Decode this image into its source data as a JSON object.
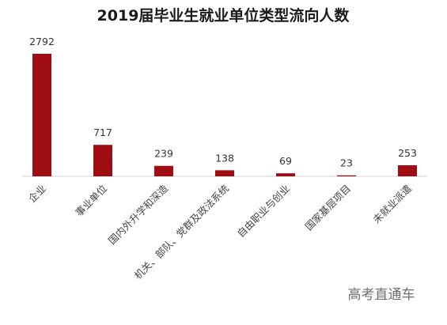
{
  "chart_data": {
    "type": "bar",
    "title": "2019届毕业生就业单位类型流向人数",
    "categories": [
      "企业",
      "事业单位",
      "国内外升学和深造",
      "机关、部队、党群及政法系统",
      "自由职业与创业",
      "国家基层项目",
      "未就业派遣"
    ],
    "values": [
      2792,
      717,
      239,
      138,
      69,
      23,
      253
    ],
    "bar_color": "#a00d13",
    "ylim": [
      0,
      2792
    ],
    "grid": false,
    "legend": "none"
  },
  "watermark": "高考直通车"
}
